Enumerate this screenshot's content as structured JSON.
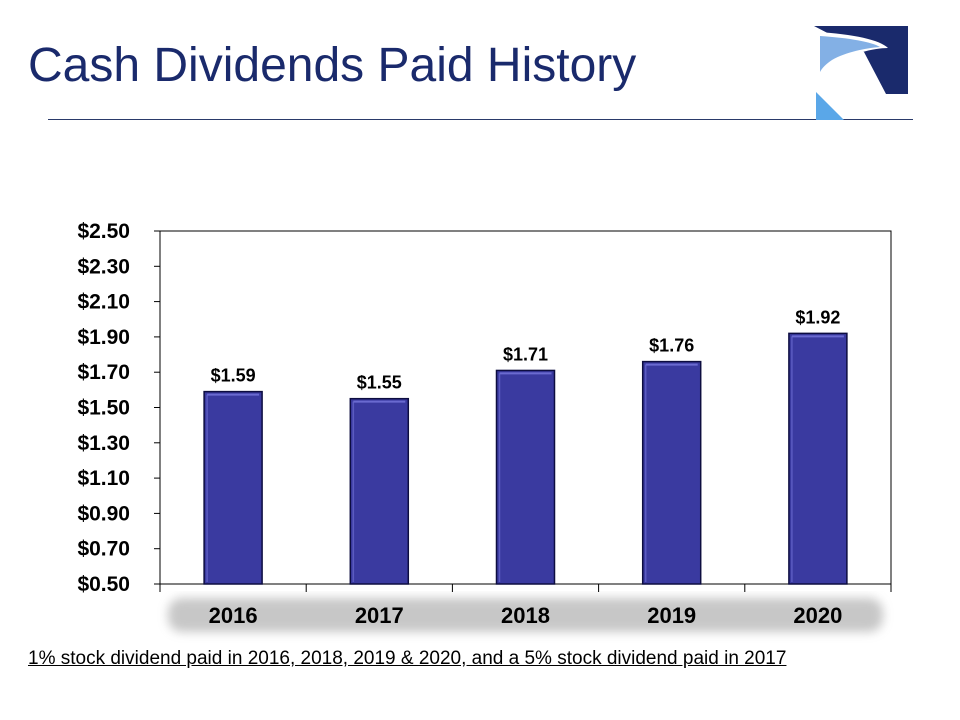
{
  "header": {
    "title": "Cash Dividends Paid History"
  },
  "logo": {
    "icon": "road-logo-icon",
    "colors": {
      "navy": "#1a2a6c",
      "blue": "#1e6fd0",
      "light": "#5aa7e8"
    }
  },
  "footnote": "1% stock dividend paid in 2016, 2018, 2019 & 2020, and a 5% stock dividend paid in 2017",
  "colors": {
    "bar_fill": "#3a3aa0",
    "bar_border": "#0d0d40",
    "bar_highlight": "#6a6ad0"
  },
  "chart_data": {
    "type": "bar",
    "title": "",
    "xlabel": "",
    "ylabel": "",
    "categories": [
      "2016",
      "2017",
      "2018",
      "2019",
      "2020"
    ],
    "values": [
      1.59,
      1.55,
      1.71,
      1.76,
      1.92
    ],
    "data_labels": [
      "$1.59",
      "$1.55",
      "$1.71",
      "$1.76",
      "$1.92"
    ],
    "ylim": [
      0.5,
      2.5
    ],
    "y_ticks": [
      0.5,
      0.7,
      0.9,
      1.1,
      1.3,
      1.5,
      1.7,
      1.9,
      2.1,
      2.3,
      2.5
    ],
    "y_tick_labels": [
      "$0.50",
      "$0.70",
      "$0.90",
      "$1.10",
      "$1.30",
      "$1.50",
      "$1.70",
      "$1.90",
      "$2.10",
      "$2.30",
      "$2.50"
    ],
    "grid": false,
    "legend": "none"
  }
}
